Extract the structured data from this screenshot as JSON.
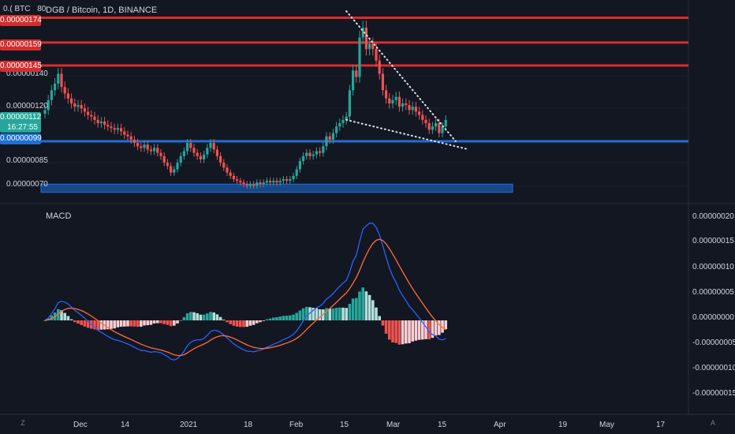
{
  "header": {
    "title": "DGB / Bitcoin, 1D, BINANCE",
    "currency_box": "0.( BTC",
    "currency_value": "80"
  },
  "price_tags": {
    "r1": "0.00000174",
    "r2": "0.00000159",
    "r3": "0.00000145",
    "current_price": "0.00000112",
    "countdown": "16:27:55",
    "support": "0.00000099"
  },
  "price_axis": [
    "0.00000140",
    "0.00000120",
    "0.00000085",
    "0.00000070"
  ],
  "macd": {
    "title": "MACD",
    "axis": [
      "0.00000020",
      "0.00000015",
      "0.00000010",
      "0.00000005",
      "0.00000000",
      "-0.00000005",
      "-0.00000010",
      "-0.00000015"
    ]
  },
  "time_axis": [
    "Dec",
    "14",
    "2021",
    "18",
    "Feb",
    "15",
    "Mar",
    "15",
    "Apr",
    "19",
    "May",
    "17"
  ],
  "corners": {
    "bottom_left": "Z",
    "bottom_right": "A"
  },
  "colors": {
    "background": "#131722",
    "up": "#26a69a",
    "down": "#ef5350",
    "resistance": "#d32f2f",
    "support": "#1e6fd9",
    "macd_line": "#2962ff",
    "signal_line": "#ff6d3a"
  },
  "chart_data": [
    {
      "type": "candlestick",
      "title": "DGB / Bitcoin, 1D, BINANCE",
      "ylim": [
        6.5e-07,
        1.8e-06
      ],
      "horizontal_levels": [
        {
          "value": 1.74e-06,
          "color": "red"
        },
        {
          "value": 1.59e-06,
          "color": "red"
        },
        {
          "value": 1.45e-06,
          "color": "red"
        },
        {
          "value": 9.9e-07,
          "color": "blue"
        }
      ],
      "support_zone": [
        6.8e-07,
        7.3e-07
      ],
      "close": [
        1.18e-06,
        1.24e-06,
        1.3e-06,
        1.34e-06,
        1.4e-06,
        1.32e-06,
        1.28e-06,
        1.25e-06,
        1.22e-06,
        1.2e-06,
        1.21e-06,
        1.19e-06,
        1.17e-06,
        1.15e-06,
        1.14e-06,
        1.12e-06,
        1.1e-06,
        1.11e-06,
        1.09e-06,
        1.08e-06,
        1.07e-06,
        1.06e-06,
        1.07e-06,
        1.05e-06,
        1.03e-06,
        1.02e-06,
        1e-06,
        9.8e-07,
        9.6e-07,
        9.5e-07,
        9.7e-07,
        9.4e-07,
        9.3e-07,
        9.5e-07,
        9.2e-07,
        9e-07,
        8.6e-07,
        8.4e-07,
        8e-07,
        8.2e-07,
        8.6e-07,
        9e-07,
        9.3e-07,
        9.8e-07,
        9.5e-07,
        9.2e-07,
        9e-07,
        8.8e-07,
        9.1e-07,
        9.5e-07,
        9.8e-07,
        9.4e-07,
        9e-07,
        8.6e-07,
        8.3e-07,
        8e-07,
        7.8e-07,
        7.6e-07,
        7.5e-07,
        7.4e-07,
        7.3e-07,
        7.2e-07,
        7.3e-07,
        7.2e-07,
        7.4e-07,
        7.3e-07,
        7.4e-07,
        7.5e-07,
        7.4e-07,
        7.5e-07,
        7.4e-07,
        7.5e-07,
        7.6e-07,
        7.5e-07,
        7.6e-07,
        7.8e-07,
        8.2e-07,
        8.7e-07,
        9e-07,
        9.2e-07,
        9e-07,
        9.1e-07,
        9.3e-07,
        9.2e-07,
        9.6e-07,
        1.02e-06,
        1e-06,
        1.04e-06,
        1.08e-06,
        1.1e-06,
        1.12e-06,
        1.14e-06,
        1.3e-06,
        1.42e-06,
        1.38e-06,
        1.62e-06,
        1.68e-06,
        1.55e-06,
        1.58e-06,
        1.55e-06,
        1.48e-06,
        1.4e-06,
        1.3e-06,
        1.25e-06,
        1.22e-06,
        1.24e-06,
        1.26e-06,
        1.2e-06,
        1.22e-06,
        1.21e-06,
        1.18e-06,
        1.2e-06,
        1.17e-06,
        1.15e-06,
        1.12e-06,
        1.1e-06,
        1.06e-06,
        1.08e-06,
        1.1e-06,
        1.04e-06,
        1.08e-06,
        1.12e-06
      ]
    },
    {
      "type": "macd",
      "title": "MACD",
      "ylim": [
        -1.7e-07,
        2.2e-07
      ],
      "histogram_note": "histogram = macd - signal"
    }
  ]
}
